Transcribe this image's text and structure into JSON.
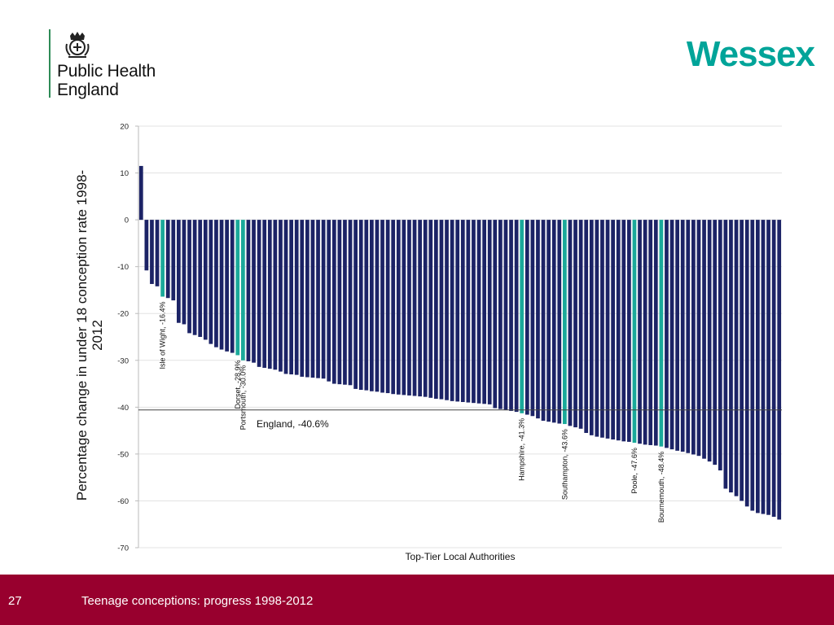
{
  "logo": {
    "line1": "Public Health",
    "line2": "England"
  },
  "brand": "Wessex",
  "footer": {
    "page_number": "27",
    "title": "Teenage conceptions: progress 1998-2012"
  },
  "colors": {
    "bar": "#1c2366",
    "highlight": "#1ba99a",
    "footer": "#98002e",
    "brand": "#00a499",
    "england_line": "#444444"
  },
  "chart_data": {
    "type": "bar",
    "ylabel": "Percentage change in under 18 conception rate 1998-2012",
    "xlabel": "Top-Tier Local Authorities",
    "ylim": [
      -70,
      20
    ],
    "yticks": [
      20,
      10,
      0,
      -10,
      -20,
      -30,
      -40,
      -50,
      -60,
      -70
    ],
    "grid": true,
    "values": [
      11.5,
      -10.8,
      -13.7,
      -14.2,
      -16.4,
      -16.7,
      -17.2,
      -22.0,
      -22.3,
      -24.2,
      -24.6,
      -25.0,
      -25.6,
      -26.5,
      -27.2,
      -27.7,
      -28.1,
      -28.4,
      -28.9,
      -30.0,
      -30.2,
      -30.5,
      -31.4,
      -31.6,
      -31.8,
      -32.0,
      -32.4,
      -32.9,
      -33.0,
      -33.1,
      -33.5,
      -33.6,
      -33.7,
      -33.8,
      -33.9,
      -34.5,
      -35.0,
      -35.1,
      -35.2,
      -35.3,
      -36.1,
      -36.3,
      -36.4,
      -36.6,
      -36.7,
      -36.9,
      -37.0,
      -37.2,
      -37.3,
      -37.4,
      -37.5,
      -37.6,
      -37.7,
      -37.8,
      -38.0,
      -38.2,
      -38.3,
      -38.5,
      -38.7,
      -38.8,
      -38.9,
      -39.0,
      -39.1,
      -39.2,
      -39.3,
      -39.4,
      -40.2,
      -40.4,
      -40.6,
      -40.8,
      -41.0,
      -41.3,
      -41.6,
      -41.9,
      -42.4,
      -42.9,
      -43.1,
      -43.3,
      -43.5,
      -43.6,
      -44.0,
      -44.3,
      -44.6,
      -45.5,
      -46.0,
      -46.3,
      -46.5,
      -46.7,
      -46.9,
      -47.1,
      -47.3,
      -47.4,
      -47.6,
      -47.8,
      -48.0,
      -48.1,
      -48.2,
      -48.4,
      -48.7,
      -49.0,
      -49.3,
      -49.5,
      -49.8,
      -50.1,
      -50.4,
      -51.0,
      -51.6,
      -52.3,
      -53.5,
      -57.4,
      -58.2,
      -59.0,
      -60.0,
      -61.2,
      -62.1,
      -62.6,
      -62.8,
      -63.0,
      -63.4,
      -64.0
    ],
    "highlights": [
      {
        "index": 4,
        "label": "Isle of Wight, -16.4%"
      },
      {
        "index": 18,
        "label": "Dorset, -28.9%"
      },
      {
        "index": 19,
        "label": "Portsmouth, -30.0%"
      },
      {
        "index": 71,
        "label": "Hampshire, -41.3%"
      },
      {
        "index": 79,
        "label": "Southampton, -43.6%"
      },
      {
        "index": 92,
        "label": "Poole, -47.6%"
      },
      {
        "index": 97,
        "label": "Bournemouth, -48.4%"
      }
    ],
    "reference_line": {
      "value": -40.6,
      "label": "England, -40.6%"
    }
  }
}
